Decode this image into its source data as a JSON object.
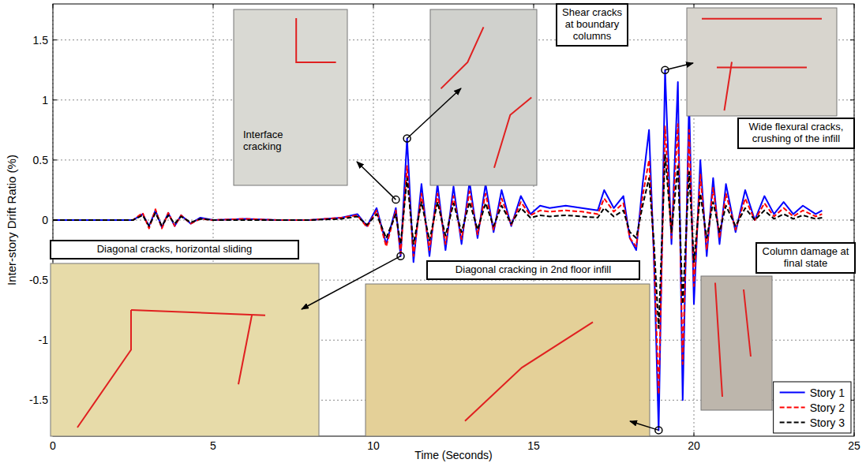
{
  "chart_data": {
    "type": "line",
    "xlabel": "Time (Seconds)",
    "ylabel": "Inter-story Drift Ratio (%)",
    "xlim": [
      0,
      25
    ],
    "xticks": [
      0,
      5,
      10,
      15,
      20,
      25
    ],
    "ylim": [
      -1.8,
      1.8
    ],
    "yticks": [
      -1.5,
      -1,
      -0.5,
      0,
      0.5,
      1,
      1.5
    ],
    "grid": true,
    "legend": "lower right",
    "x": [
      0,
      2.5,
      2.8,
      3.0,
      3.2,
      3.4,
      3.6,
      3.8,
      4.0,
      4.3,
      4.6,
      5,
      6,
      7,
      8,
      9,
      9.5,
      9.8,
      10.1,
      10.4,
      10.7,
      10.85,
      11.05,
      11.25,
      11.5,
      11.75,
      12.0,
      12.25,
      12.5,
      12.75,
      13.0,
      13.25,
      13.5,
      13.75,
      14.0,
      14.3,
      14.6,
      14.9,
      15.2,
      15.5,
      16,
      16.5,
      17,
      17.2,
      17.5,
      17.8,
      18.0,
      18.2,
      18.4,
      18.6,
      18.75,
      18.9,
      19.1,
      19.3,
      19.5,
      19.65,
      19.85,
      20.0,
      20.2,
      20.4,
      20.6,
      20.8,
      21.0,
      21.3,
      21.6,
      21.9,
      22.2,
      22.5,
      22.8,
      23.1,
      23.4,
      23.8,
      24
    ],
    "series": [
      {
        "name": "Story 1",
        "color": "#0000ff",
        "line_style": "solid",
        "values": [
          0,
          0,
          0.05,
          -0.05,
          0.08,
          -0.06,
          0.06,
          -0.05,
          0.04,
          -0.03,
          0.02,
          0,
          0.01,
          0,
          0,
          0.02,
          0.05,
          -0.05,
          0.1,
          -0.2,
          0.1,
          -0.3,
          0.68,
          -0.35,
          0.3,
          -0.3,
          0.3,
          -0.25,
          0.28,
          -0.2,
          0.32,
          -0.15,
          0.3,
          -0.1,
          0.25,
          -0.05,
          0.2,
          0.05,
          0.12,
          0.1,
          0.12,
          0.1,
          0.08,
          0.25,
          0.1,
          0.2,
          -0.15,
          -0.25,
          0.3,
          0.75,
          -0.3,
          -1.75,
          1.25,
          -0.2,
          1.15,
          -1.5,
          1.0,
          -0.7,
          0.5,
          -0.3,
          0.35,
          -0.2,
          0.3,
          -0.1,
          0.25,
          0,
          0.2,
          0.05,
          0.15,
          0.05,
          0.12,
          0.05,
          0.08
        ]
      },
      {
        "name": "Story 2",
        "color": "#ff0000",
        "line_style": "dashed",
        "values": [
          0,
          0,
          0.06,
          -0.07,
          0.09,
          -0.07,
          0.06,
          -0.05,
          0.04,
          -0.03,
          0.01,
          0,
          0.01,
          0,
          0,
          0.02,
          0.04,
          -0.06,
          0.08,
          -0.22,
          0.08,
          -0.28,
          0.45,
          -0.3,
          0.22,
          -0.25,
          0.22,
          -0.2,
          0.2,
          -0.16,
          0.24,
          -0.12,
          0.22,
          -0.08,
          0.18,
          -0.04,
          0.15,
          0.04,
          0.08,
          0.07,
          0.08,
          0.07,
          0.05,
          0.18,
          0.07,
          0.14,
          -0.15,
          -0.22,
          0.2,
          0.5,
          -0.25,
          -1.45,
          0.78,
          -0.15,
          0.8,
          -1.2,
          0.75,
          -0.55,
          0.38,
          -0.25,
          0.27,
          -0.15,
          0.22,
          -0.08,
          0.18,
          0,
          0.14,
          0.03,
          0.1,
          0.03,
          0.08,
          0.03,
          0.05
        ]
      },
      {
        "name": "Story 3",
        "color": "#000000",
        "line_style": "dashed",
        "values": [
          0,
          0,
          0.04,
          -0.05,
          0.06,
          -0.05,
          0.04,
          -0.03,
          0.03,
          -0.02,
          0.01,
          0,
          0,
          0,
          0,
          0.01,
          0.03,
          -0.04,
          0.05,
          -0.15,
          0.05,
          -0.2,
          0.35,
          -0.2,
          0.15,
          -0.17,
          0.15,
          -0.13,
          0.14,
          -0.1,
          0.15,
          -0.08,
          0.14,
          -0.05,
          0.12,
          -0.03,
          0.1,
          0.02,
          0.04,
          0.03,
          0.04,
          0.03,
          0.02,
          0.1,
          0.03,
          0.08,
          -0.1,
          -0.15,
          0.12,
          0.35,
          -0.18,
          -0.9,
          0.55,
          -0.1,
          0.45,
          -0.7,
          0.4,
          -0.35,
          0.22,
          -0.15,
          0.15,
          -0.1,
          0.12,
          -0.05,
          0.1,
          0,
          0.08,
          0.01,
          0.05,
          0.01,
          0.04,
          0.01,
          0.02
        ]
      }
    ],
    "annotations": [
      {
        "text": "Interface cracking",
        "x": 10.7,
        "y": 0.17
      },
      {
        "text": "Shear cracks at boundary columns",
        "x": 11.05,
        "y": 0.68
      },
      {
        "text": "Wide flexural cracks, crushing of the infill",
        "x": 19.1,
        "y": 1.25
      },
      {
        "text": "Column damage at final state"
      },
      {
        "text": "Diagonal cracks, horizontal sliding",
        "x": 10.85,
        "y": -0.3
      },
      {
        "text": "Diagonal cracking in 2nd floor infill",
        "x": 18.9,
        "y": -1.75
      }
    ]
  }
}
